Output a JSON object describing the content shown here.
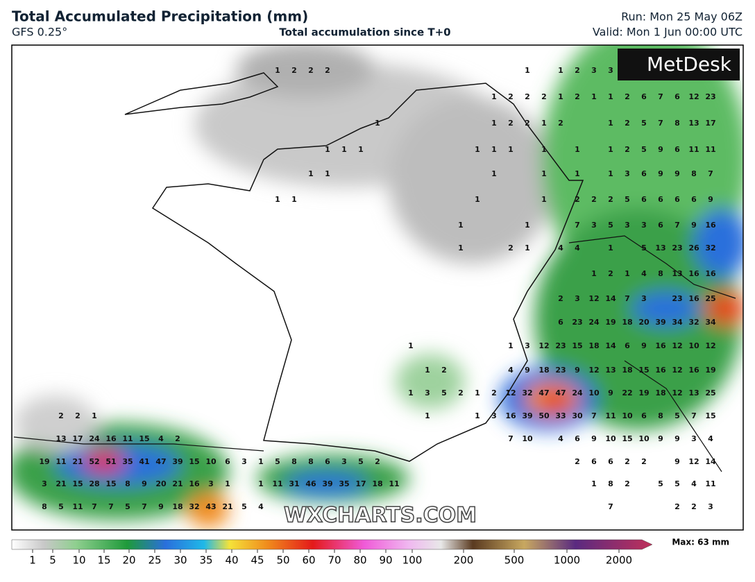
{
  "header": {
    "title": "Total Accumulated Precipitation (mm)",
    "model": "GFS 0.25°",
    "subtitle": "Total accumulation since T+0",
    "run": "Run: Mon 25 May 06Z",
    "valid": "Valid: Mon 1 Jun 00:00 UTC"
  },
  "logo": "MetDesk",
  "watermark": "WXCHARTS.COM",
  "legend": {
    "ticks": [
      1,
      5,
      10,
      15,
      20,
      25,
      30,
      35,
      40,
      45,
      50,
      60,
      70,
      80,
      90,
      100,
      200,
      500,
      1000,
      2000
    ],
    "max": "Max: 63 mm"
  },
  "map_labels": {
    "rows": [
      [
        null,
        null,
        null,
        null,
        null,
        null,
        null,
        null,
        null,
        null,
        null,
        null,
        null,
        null,
        1,
        2,
        2,
        2,
        null,
        null,
        null,
        null,
        null,
        null,
        null,
        null,
        null,
        null,
        null,
        1,
        null,
        1,
        2,
        3,
        3,
        null,
        null,
        null,
        null,
        null,
        null
      ],
      [
        null,
        null,
        null,
        null,
        null,
        null,
        null,
        null,
        null,
        null,
        null,
        null,
        null,
        null,
        null,
        null,
        null,
        null,
        null,
        null,
        null,
        null,
        null,
        null,
        null,
        null,
        null,
        1,
        2,
        2,
        2,
        1,
        2,
        1,
        1,
        2,
        6,
        7,
        6,
        12,
        23
      ],
      [
        null,
        null,
        null,
        null,
        null,
        null,
        null,
        null,
        null,
        null,
        null,
        null,
        null,
        null,
        null,
        null,
        null,
        null,
        null,
        null,
        1,
        null,
        null,
        null,
        null,
        null,
        null,
        1,
        2,
        2,
        1,
        2,
        null,
        null,
        1,
        2,
        5,
        7,
        8,
        13,
        17
      ],
      [
        null,
        null,
        null,
        null,
        null,
        null,
        null,
        null,
        null,
        null,
        null,
        null,
        null,
        null,
        null,
        null,
        null,
        1,
        1,
        1,
        null,
        null,
        null,
        null,
        null,
        null,
        1,
        1,
        1,
        null,
        1,
        null,
        1,
        null,
        1,
        2,
        5,
        9,
        6,
        11,
        11
      ],
      [
        null,
        null,
        null,
        null,
        null,
        null,
        null,
        null,
        null,
        null,
        null,
        null,
        null,
        null,
        null,
        null,
        1,
        1,
        null,
        null,
        null,
        null,
        null,
        null,
        null,
        null,
        null,
        1,
        null,
        null,
        1,
        null,
        1,
        null,
        1,
        3,
        6,
        9,
        9,
        8,
        7
      ],
      [
        null,
        null,
        null,
        null,
        null,
        null,
        null,
        null,
        null,
        null,
        null,
        null,
        null,
        null,
        1,
        1,
        null,
        null,
        null,
        null,
        null,
        null,
        null,
        null,
        null,
        null,
        1,
        null,
        null,
        null,
        1,
        null,
        2,
        2,
        2,
        5,
        6,
        6,
        6,
        6,
        9
      ],
      [
        null,
        null,
        null,
        null,
        null,
        null,
        null,
        null,
        null,
        null,
        null,
        null,
        null,
        null,
        null,
        null,
        null,
        null,
        null,
        null,
        null,
        null,
        null,
        null,
        null,
        1,
        null,
        null,
        null,
        1,
        null,
        null,
        7,
        3,
        5,
        3,
        3,
        6,
        7,
        9,
        16
      ],
      [
        null,
        null,
        null,
        null,
        null,
        null,
        null,
        null,
        null,
        null,
        null,
        null,
        null,
        null,
        null,
        null,
        null,
        null,
        null,
        null,
        null,
        null,
        null,
        null,
        null,
        1,
        null,
        null,
        2,
        1,
        null,
        4,
        4,
        null,
        1,
        null,
        5,
        13,
        23,
        26,
        32
      ],
      [
        null,
        null,
        null,
        null,
        null,
        null,
        null,
        null,
        null,
        null,
        null,
        null,
        null,
        null,
        null,
        null,
        null,
        null,
        null,
        null,
        null,
        null,
        null,
        null,
        null,
        null,
        null,
        null,
        null,
        null,
        null,
        null,
        null,
        1,
        2,
        1,
        4,
        8,
        13,
        16,
        16
      ],
      [
        null,
        null,
        null,
        null,
        null,
        null,
        null,
        null,
        null,
        null,
        null,
        null,
        null,
        null,
        null,
        null,
        null,
        null,
        null,
        null,
        null,
        null,
        null,
        null,
        null,
        null,
        null,
        null,
        null,
        null,
        null,
        2,
        3,
        12,
        14,
        7,
        3,
        null,
        23,
        16,
        25
      ],
      [
        null,
        null,
        null,
        null,
        null,
        null,
        null,
        null,
        null,
        null,
        null,
        null,
        null,
        null,
        null,
        null,
        null,
        null,
        null,
        null,
        null,
        null,
        null,
        null,
        null,
        null,
        null,
        null,
        null,
        null,
        null,
        6,
        23,
        24,
        19,
        18,
        20,
        39,
        34,
        32,
        34
      ],
      [
        null,
        null,
        null,
        null,
        null,
        null,
        null,
        null,
        null,
        null,
        null,
        null,
        null,
        null,
        null,
        null,
        null,
        null,
        null,
        null,
        null,
        null,
        1,
        null,
        null,
        null,
        null,
        null,
        1,
        3,
        12,
        23,
        15,
        18,
        14,
        6,
        9,
        16,
        12,
        10,
        12
      ],
      [
        null,
        null,
        null,
        null,
        null,
        null,
        null,
        null,
        null,
        null,
        null,
        null,
        null,
        null,
        null,
        null,
        null,
        null,
        null,
        null,
        null,
        null,
        null,
        1,
        2,
        null,
        null,
        null,
        4,
        9,
        18,
        23,
        9,
        12,
        13,
        18,
        15,
        16,
        12,
        16,
        19
      ],
      [
        null,
        null,
        null,
        null,
        null,
        null,
        null,
        null,
        null,
        null,
        null,
        null,
        null,
        null,
        null,
        null,
        null,
        null,
        null,
        null,
        null,
        null,
        1,
        3,
        5,
        2,
        1,
        2,
        12,
        32,
        47,
        47,
        24,
        10,
        9,
        22,
        19,
        18,
        12,
        13,
        25
      ],
      [
        null,
        2,
        2,
        1,
        null,
        null,
        null,
        null,
        null,
        null,
        null,
        null,
        null,
        null,
        null,
        null,
        null,
        null,
        null,
        null,
        null,
        null,
        null,
        1,
        null,
        null,
        1,
        3,
        16,
        39,
        50,
        33,
        30,
        7,
        11,
        10,
        6,
        8,
        5,
        7,
        15
      ],
      [
        null,
        13,
        17,
        24,
        16,
        11,
        15,
        4,
        2,
        null,
        null,
        null,
        null,
        null,
        null,
        null,
        null,
        null,
        null,
        null,
        null,
        null,
        null,
        null,
        null,
        null,
        null,
        null,
        7,
        10,
        null,
        4,
        6,
        9,
        10,
        15,
        10,
        9,
        9,
        3,
        4
      ],
      [
        19,
        11,
        21,
        52,
        51,
        35,
        41,
        47,
        39,
        15,
        10,
        6,
        3,
        1,
        5,
        8,
        8,
        6,
        3,
        5,
        2,
        null,
        null,
        null,
        null,
        null,
        null,
        null,
        null,
        null,
        null,
        null,
        2,
        6,
        6,
        2,
        2,
        null,
        9,
        12,
        14
      ],
      [
        3,
        21,
        15,
        28,
        15,
        8,
        9,
        20,
        21,
        16,
        3,
        1,
        null,
        1,
        11,
        31,
        46,
        39,
        35,
        17,
        18,
        11,
        null,
        null,
        null,
        null,
        null,
        null,
        null,
        null,
        null,
        null,
        null,
        1,
        8,
        2,
        null,
        5,
        5,
        4,
        11
      ],
      [
        8,
        5,
        11,
        7,
        7,
        5,
        7,
        9,
        18,
        32,
        43,
        21,
        5,
        4,
        null,
        null,
        null,
        null,
        null,
        null,
        null,
        null,
        null,
        null,
        null,
        null,
        null,
        null,
        null,
        null,
        null,
        null,
        null,
        null,
        7,
        null,
        null,
        null,
        2,
        2,
        3
      ]
    ]
  }
}
